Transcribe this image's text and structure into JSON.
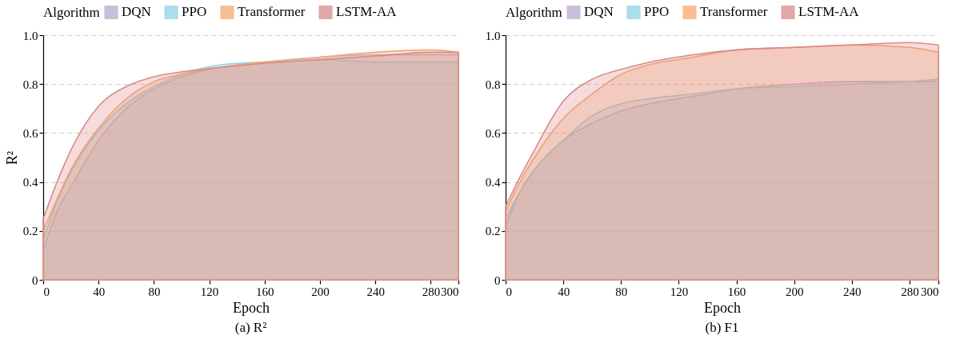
{
  "chart_data": [
    {
      "type": "area",
      "title": "(a) R²",
      "xlabel": "Epoch",
      "ylabel": "R²",
      "legend_title": "Algorithm",
      "legend": "top",
      "grid": "y",
      "x": [
        0,
        10,
        20,
        40,
        60,
        80,
        100,
        130,
        160,
        200,
        240,
        280,
        300
      ],
      "xlim": [
        0,
        300
      ],
      "xticks": [
        0,
        40,
        80,
        120,
        160,
        200,
        240,
        280,
        300
      ],
      "ylim": [
        0,
        1
      ],
      "yticks": [
        0,
        0.2,
        0.4,
        0.6,
        0.8,
        {
          "value": 1,
          "label": "1.0"
        }
      ],
      "series": [
        {
          "name": "DQN",
          "color": "#b9a9cf",
          "values": [
            0.12,
            0.28,
            0.38,
            0.57,
            0.7,
            0.78,
            0.83,
            0.87,
            0.89,
            0.91,
            0.92,
            0.92,
            0.92
          ]
        },
        {
          "name": "PPO",
          "color": "#8ed3e3",
          "values": [
            0.16,
            0.32,
            0.44,
            0.61,
            0.72,
            0.79,
            0.84,
            0.88,
            0.89,
            0.9,
            0.89,
            0.89,
            0.89
          ]
        },
        {
          "name": "Transformer",
          "color": "#f6a86f",
          "values": [
            0.2,
            0.33,
            0.45,
            0.62,
            0.74,
            0.81,
            0.84,
            0.87,
            0.89,
            0.91,
            0.93,
            0.94,
            0.93
          ]
        },
        {
          "name": "LSTM-AA",
          "color": "#d98a8a",
          "values": [
            0.25,
            0.4,
            0.53,
            0.71,
            0.79,
            0.83,
            0.85,
            0.87,
            0.885,
            0.9,
            0.915,
            0.93,
            0.93
          ]
        }
      ]
    },
    {
      "type": "area",
      "title": "(b) F1",
      "xlabel": "Epoch",
      "legend_title": "Algorithm",
      "legend": "top",
      "grid": "y",
      "x": [
        0,
        10,
        20,
        40,
        60,
        80,
        100,
        130,
        160,
        200,
        240,
        280,
        300
      ],
      "xlim": [
        0,
        300
      ],
      "xticks": [
        0,
        40,
        80,
        120,
        160,
        200,
        240,
        280,
        300
      ],
      "ylim": [
        0,
        1
      ],
      "yticks": [
        0,
        0.2,
        0.4,
        0.6,
        0.8,
        {
          "value": 1,
          "label": "1.0"
        }
      ],
      "series": [
        {
          "name": "DQN",
          "color": "#b9a9cf",
          "values": [
            0.22,
            0.36,
            0.45,
            0.57,
            0.64,
            0.69,
            0.72,
            0.75,
            0.78,
            0.8,
            0.81,
            0.81,
            0.81
          ]
        },
        {
          "name": "PPO",
          "color": "#8ed3e3",
          "values": [
            0.25,
            0.36,
            0.45,
            0.57,
            0.67,
            0.72,
            0.74,
            0.76,
            0.78,
            0.79,
            0.8,
            0.81,
            0.82
          ]
        },
        {
          "name": "Transformer",
          "color": "#f6a86f",
          "values": [
            0.28,
            0.4,
            0.5,
            0.66,
            0.76,
            0.84,
            0.88,
            0.91,
            0.94,
            0.95,
            0.96,
            0.95,
            0.93
          ]
        },
        {
          "name": "LSTM-AA",
          "color": "#d98a8a",
          "values": [
            0.3,
            0.42,
            0.53,
            0.73,
            0.82,
            0.86,
            0.89,
            0.92,
            0.94,
            0.95,
            0.96,
            0.97,
            0.96
          ]
        }
      ]
    }
  ]
}
